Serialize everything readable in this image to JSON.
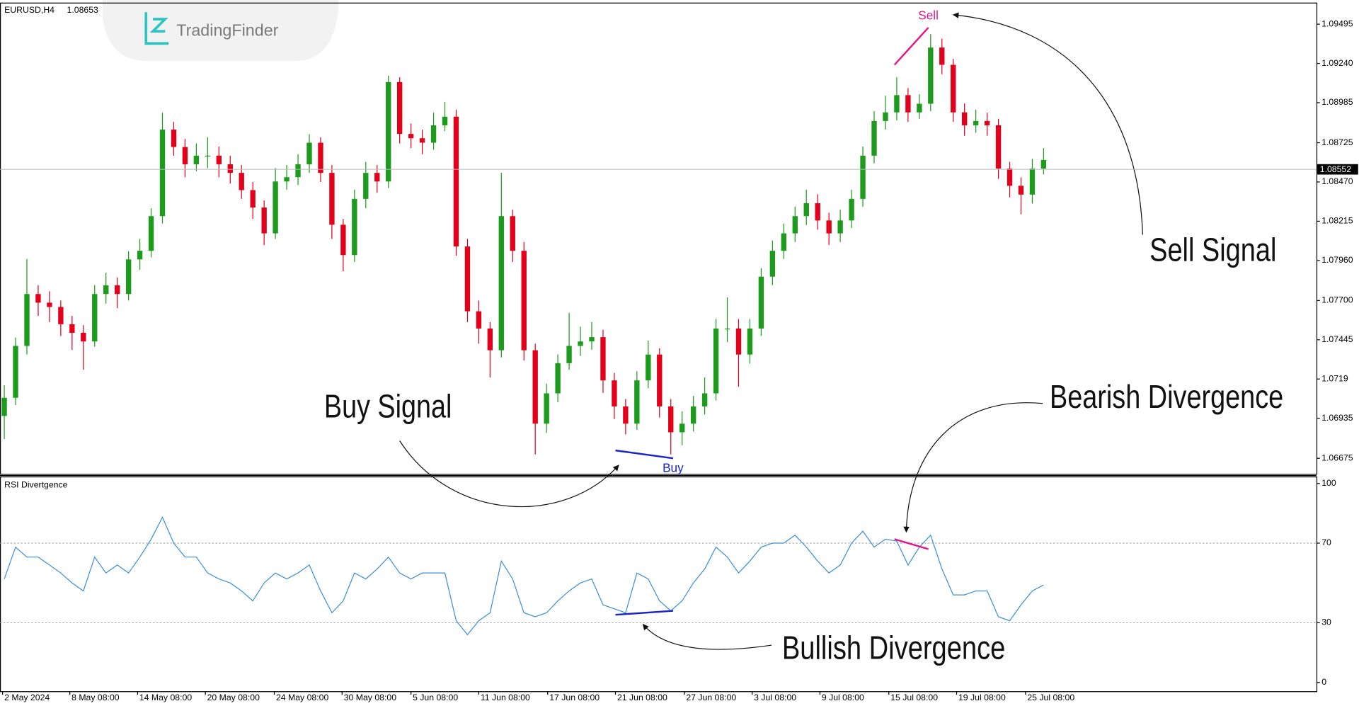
{
  "header": {
    "symbol": "EURUSD,H4",
    "price": 1.08653
  },
  "logo": "TradingFinder",
  "annotations": {
    "sell_signal": "Sell Signal",
    "buy_signal": "Buy Signal",
    "bearish": "Bearish Divergence",
    "bullish": "Bullish Divergence"
  },
  "chart_data": [
    {
      "type": "candlestick",
      "up_color": "#1c9b1c",
      "down_color": "#e3001b",
      "xlim": [
        -0.38,
        116.15
      ],
      "ylim": [
        1.06574,
        1.09635
      ],
      "yticks": [
        1.09495,
        {
          "value": 1.0924,
          "label": "1.09240"
        },
        1.08985,
        1.08725,
        {
          "value": 1.0847,
          "label": "1.08470"
        },
        1.08215,
        {
          "value": 1.0796,
          "label": "1.07960"
        },
        {
          "value": 1.077,
          "label": "1.07700"
        },
        1.07445,
        1.0719,
        1.06935,
        1.06675
      ],
      "current_price": 1.08552,
      "open": [
        1.0695,
        1.07068,
        1.07405,
        1.07742,
        1.07686,
        1.07658,
        1.07546,
        1.0749,
        1.07434,
        1.07742,
        1.07799,
        1.07742,
        1.07967,
        1.08023,
        1.08248,
        1.0881,
        1.08697,
        1.08585,
        1.08641,
        1.08641,
        1.08585,
        1.08529,
        1.08417,
        1.08304,
        1.08136,
        1.08473,
        1.08501,
        1.08585,
        1.08725,
        1.08529,
        1.08192,
        1.07995,
        1.0836,
        1.08529,
        1.08473,
        1.09119,
        1.08782,
        1.08754,
        1.08725,
        1.08838,
        1.08894,
        1.08051,
        1.0763,
        1.07518,
        1.07377,
        1.08248,
        1.08023,
        1.07377,
        1.069,
        1.07097,
        1.07293,
        1.07405,
        1.07434,
        1.07462,
        1.07181,
        1.07012,
        1.069,
        1.07181,
        1.07349,
        1.07012,
        1.06844,
        1.069,
        1.07012,
        1.07097,
        1.07518,
        1.07518,
        1.07349,
        1.07518,
        1.07855,
        1.08023,
        1.08136,
        1.08248,
        1.08332,
        1.0822,
        1.08136,
        1.0822,
        1.0836,
        1.08641,
        1.08866,
        1.08922,
        1.09034,
        1.08922,
        1.08978,
        1.09343,
        1.09231,
        1.08922,
        1.08838,
        1.08866,
        1.08838,
        1.08557,
        1.08445,
        1.08388,
        1.08557
      ],
      "high": [
        1.0715,
        1.0746,
        1.0797,
        1.078,
        1.0776,
        1.077,
        1.076,
        1.0754,
        1.078,
        1.0788,
        1.0785,
        1.0802,
        1.081,
        1.083,
        1.0892,
        1.0886,
        1.0875,
        1.0872,
        1.0876,
        1.087,
        1.0864,
        1.0858,
        1.0847,
        1.0835,
        1.0856,
        1.0858,
        1.0865,
        1.0878,
        1.0876,
        1.0858,
        1.0823,
        1.0842,
        1.086,
        1.0858,
        1.0916,
        1.0915,
        1.0885,
        1.0881,
        1.0892,
        1.0899,
        1.0894,
        1.081,
        1.077,
        1.0756,
        1.0853,
        1.0829,
        1.0808,
        1.0742,
        1.0716,
        1.0735,
        1.0762,
        1.0753,
        1.0756,
        1.0751,
        1.0723,
        1.0706,
        1.0724,
        1.0744,
        1.0739,
        1.0706,
        1.0698,
        1.0708,
        1.072,
        1.0758,
        1.0772,
        1.0758,
        1.0758,
        1.0791,
        1.0809,
        1.082,
        1.0831,
        1.0842,
        1.0839,
        1.0827,
        1.0829,
        1.0842,
        1.087,
        1.0893,
        1.0903,
        1.0915,
        1.0908,
        1.0904,
        1.0943,
        1.094,
        1.0927,
        1.0898,
        1.0894,
        1.0892,
        1.0888,
        1.086,
        1.085,
        1.0862,
        1.0869
      ],
      "low": [
        1.068,
        1.0702,
        1.0735,
        1.076,
        1.0756,
        1.0747,
        1.0738,
        1.0725,
        1.074,
        1.0768,
        1.0765,
        1.077,
        1.079,
        1.0798,
        1.082,
        1.0864,
        1.085,
        1.0854,
        1.0856,
        1.085,
        1.0846,
        1.0836,
        1.0823,
        1.0806,
        1.081,
        1.0842,
        1.0845,
        1.0853,
        1.0847,
        1.081,
        1.0789,
        1.0795,
        1.083,
        1.084,
        1.0843,
        1.0872,
        1.0869,
        1.0865,
        1.0868,
        1.088,
        1.0799,
        1.0756,
        1.0742,
        1.072,
        1.0733,
        1.0795,
        1.0731,
        1.067,
        1.0684,
        1.0704,
        1.0725,
        1.0734,
        1.0738,
        1.071,
        1.0693,
        1.0683,
        1.0686,
        1.0713,
        1.0694,
        1.067,
        1.0676,
        1.0685,
        1.0696,
        1.0705,
        1.0743,
        1.0714,
        1.0729,
        1.0747,
        1.078,
        1.0797,
        1.0808,
        1.0819,
        1.0816,
        1.0806,
        1.0808,
        1.0817,
        1.0831,
        1.0859,
        1.0881,
        1.0887,
        1.0886,
        1.0888,
        1.0893,
        1.0917,
        1.0886,
        1.0877,
        1.0879,
        1.0877,
        1.0849,
        1.0837,
        1.0826,
        1.0833,
        1.0852
      ],
      "close": [
        1.07068,
        1.07405,
        1.07742,
        1.07686,
        1.07658,
        1.07546,
        1.0749,
        1.07434,
        1.07742,
        1.07799,
        1.07742,
        1.07967,
        1.08023,
        1.08248,
        1.0881,
        1.08697,
        1.08585,
        1.08641,
        1.08641,
        1.08585,
        1.08529,
        1.08417,
        1.08304,
        1.08136,
        1.08473,
        1.08501,
        1.08585,
        1.08725,
        1.08529,
        1.08192,
        1.07995,
        1.0836,
        1.08529,
        1.08473,
        1.09119,
        1.08782,
        1.08754,
        1.08725,
        1.08838,
        1.08894,
        1.08051,
        1.0763,
        1.07518,
        1.07377,
        1.08248,
        1.08023,
        1.07377,
        1.069,
        1.07097,
        1.07293,
        1.07405,
        1.07434,
        1.07462,
        1.07181,
        1.07012,
        1.069,
        1.07181,
        1.07349,
        1.07012,
        1.06844,
        1.069,
        1.07012,
        1.07097,
        1.07518,
        1.07518,
        1.07349,
        1.07518,
        1.07855,
        1.08023,
        1.08136,
        1.08248,
        1.08332,
        1.0822,
        1.08136,
        1.0822,
        1.0836,
        1.08641,
        1.08866,
        1.08922,
        1.09034,
        1.08922,
        1.08978,
        1.09343,
        1.09231,
        1.08922,
        1.08838,
        1.08866,
        1.08838,
        1.08557,
        1.08445,
        1.08388,
        1.08557,
        1.08613
      ],
      "signals": [
        {
          "label": "Buy",
          "color": "#1a24c8",
          "x": [
            54.1,
            59.2
          ],
          "values": [
            1.06726,
            1.06675
          ]
        },
        {
          "label": "Sell",
          "color": "#e0198c",
          "x": [
            78.8,
            81.8
          ],
          "values": [
            1.09231,
            1.09473
          ]
        }
      ]
    },
    {
      "type": "line",
      "title": "RSI Divertgence",
      "xlim": [
        -0.38,
        116.15
      ],
      "ylim": [
        -4.4,
        103.5
      ],
      "yticks": [
        0,
        30,
        70,
        100
      ],
      "levels": [
        30,
        70
      ],
      "xticks": [
        {
          "value": -0.15,
          "label": "2 May 2024"
        },
        {
          "value": 5.8,
          "label": "8 May 08:00"
        },
        {
          "value": 11.8,
          "label": "14 May 08:00"
        },
        {
          "value": 17.8,
          "label": "20 May 08:00"
        },
        {
          "value": 23.9,
          "label": "24 May 08:00"
        },
        {
          "value": 29.9,
          "label": "30 May 08:00"
        },
        {
          "value": 36,
          "label": "5 Jun 08:00"
        },
        {
          "value": 42,
          "label": "11 Jun 08:00"
        },
        {
          "value": 48.1,
          "label": "17 Jun 08:00"
        },
        {
          "value": 54.1,
          "label": "21 Jun 08:00"
        },
        {
          "value": 60.2,
          "label": "27 Jun 08:00"
        },
        {
          "value": 66.2,
          "label": "3 Jul 08:00"
        },
        {
          "value": 72.2,
          "label": "9 Jul 08:00"
        },
        {
          "value": 78.3,
          "label": "15 Jul 08:00"
        },
        {
          "value": 84.3,
          "label": "19 Jul 08:00"
        },
        {
          "value": 90.4,
          "label": "25 Jul 08:00"
        }
      ],
      "series": [
        {
          "color": "#3d8fd6",
          "values": [
            52,
            68,
            63,
            63,
            59,
            55,
            50,
            46,
            63,
            55,
            59,
            55,
            63,
            72,
            83,
            70,
            63,
            63,
            55,
            52,
            50,
            46,
            41,
            50,
            55,
            52,
            55,
            59,
            46,
            35,
            41,
            55,
            52,
            57,
            63,
            55,
            52,
            55,
            55,
            55,
            31,
            24,
            31,
            35,
            61,
            52,
            35,
            33,
            35,
            41,
            46,
            50,
            52,
            39,
            37,
            35,
            55,
            52,
            41,
            36,
            41,
            50,
            57,
            68,
            63,
            55,
            61,
            68,
            70,
            70,
            74,
            68,
            61,
            55,
            59,
            70,
            76,
            68,
            72,
            71,
            59,
            68,
            74,
            57,
            44,
            44,
            46,
            46,
            33,
            31,
            39,
            46,
            49
          ]
        }
      ],
      "divergences": [
        {
          "color": "#1a24c8",
          "x": [
            54.1,
            59.2
          ],
          "values": [
            34,
            36
          ]
        },
        {
          "color": "#e0198c",
          "x": [
            78.8,
            81.8
          ],
          "values": [
            72,
            67
          ]
        }
      ]
    }
  ]
}
